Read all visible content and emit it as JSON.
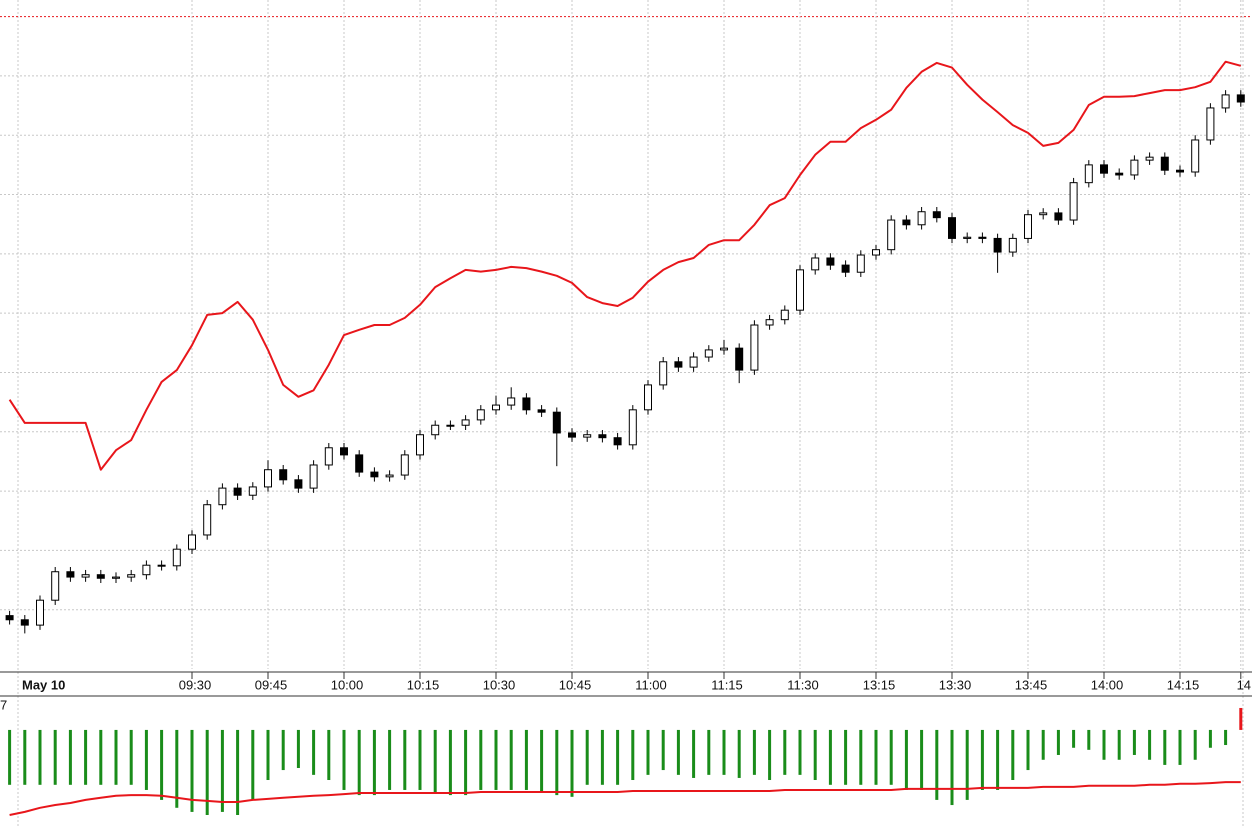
{
  "chart_data": [
    {
      "type": "candlestick",
      "date_label": "May 10",
      "categories": [
        null,
        null,
        null,
        null,
        null,
        null,
        null,
        null,
        null,
        null,
        null,
        null,
        "09:30",
        null,
        null,
        null,
        null,
        "09:45",
        null,
        null,
        null,
        null,
        "10:00",
        null,
        null,
        null,
        null,
        "10:15",
        null,
        null,
        null,
        null,
        "10:30",
        null,
        null,
        null,
        null,
        "10:45",
        null,
        null,
        null,
        null,
        "11:00",
        null,
        null,
        null,
        null,
        "11:15",
        null,
        null,
        null,
        null,
        "11:30",
        null,
        null,
        null,
        null,
        "13:15",
        null,
        null,
        null,
        null,
        "13:30",
        null,
        null,
        null,
        null,
        "13:45",
        null,
        null,
        null,
        null,
        "14:00",
        null,
        null,
        null,
        null,
        "14:15",
        null,
        null,
        null,
        "14"
      ],
      "open": [
        9.0,
        8.3,
        7.4,
        11.6,
        16.4,
        15.5,
        15.9,
        15.3,
        15.5,
        15.9,
        17.5,
        17.4,
        20.2,
        22.6,
        27.7,
        30.5,
        29.3,
        30.7,
        33.6,
        31.9,
        30.5,
        34.4,
        37.3,
        36.1,
        33.2,
        32.4,
        32.7,
        36.1,
        39.5,
        41.1,
        41.1,
        42.0,
        43.7,
        44.5,
        45.7,
        43.7,
        43.3,
        39.8,
        39.1,
        39.5,
        39.0,
        37.8,
        43.7,
        47.9,
        51.8,
        50.9,
        52.6,
        53.8,
        54.1,
        50.4,
        58.0,
        58.9,
        60.5,
        67.3,
        69.3,
        68.1,
        66.9,
        69.8,
        70.7,
        75.7,
        74.9,
        77.1,
        76.1,
        72.6,
        72.8,
        72.6,
        70.3,
        72.6,
        76.6,
        76.9,
        75.7,
        82.0,
        85.0,
        83.6,
        83.3,
        85.8,
        86.3,
        84.1,
        83.8,
        89.2,
        94.6,
        96.8
      ],
      "high": [
        9.8,
        9.1,
        12.4,
        17.2,
        17.2,
        16.7,
        16.7,
        16.3,
        16.7,
        18.3,
        18.3,
        21.0,
        23.4,
        28.5,
        31.3,
        31.3,
        31.5,
        35.2,
        34.4,
        32.7,
        35.2,
        38.1,
        38.1,
        36.9,
        34.0,
        33.5,
        36.9,
        40.3,
        41.9,
        41.9,
        42.8,
        44.5,
        46.1,
        47.5,
        46.5,
        44.5,
        44.1,
        40.6,
        40.3,
        40.3,
        39.8,
        44.5,
        48.7,
        52.6,
        52.6,
        53.4,
        54.6,
        55.5,
        54.9,
        58.8,
        59.7,
        61.3,
        68.1,
        70.1,
        70.1,
        68.9,
        70.6,
        71.5,
        76.5,
        76.5,
        77.9,
        77.9,
        76.9,
        73.6,
        73.6,
        73.4,
        73.4,
        77.4,
        77.7,
        77.7,
        82.8,
        85.8,
        85.8,
        84.4,
        86.6,
        87.1,
        87.1,
        84.9,
        90.0,
        95.4,
        97.6,
        97.6
      ],
      "low": [
        7.5,
        6.0,
        6.6,
        10.8,
        14.7,
        14.7,
        14.5,
        14.5,
        14.7,
        15.1,
        16.6,
        16.6,
        19.4,
        21.8,
        26.9,
        28.5,
        28.5,
        29.9,
        31.1,
        29.7,
        29.7,
        33.6,
        35.3,
        32.4,
        31.6,
        31.6,
        31.9,
        35.3,
        38.7,
        40.3,
        40.3,
        41.2,
        42.9,
        43.7,
        42.9,
        42.5,
        34.2,
        38.3,
        38.3,
        38.2,
        37.0,
        37.0,
        42.9,
        47.1,
        50.1,
        50.1,
        51.8,
        53.0,
        48.2,
        49.6,
        57.2,
        58.1,
        59.7,
        66.5,
        67.3,
        66.1,
        66.1,
        69.0,
        69.9,
        74.1,
        74.1,
        75.3,
        71.8,
        71.8,
        71.8,
        66.8,
        69.5,
        71.8,
        75.8,
        74.9,
        74.9,
        81.2,
        82.8,
        82.5,
        82.5,
        85.0,
        83.3,
        83.0,
        83.0,
        88.4,
        93.8,
        94.8
      ],
      "close": [
        8.3,
        7.4,
        11.6,
        16.4,
        15.5,
        15.9,
        15.3,
        15.5,
        15.9,
        17.5,
        17.4,
        20.2,
        22.6,
        27.7,
        30.5,
        29.3,
        30.7,
        33.6,
        31.9,
        30.5,
        34.4,
        37.3,
        36.1,
        33.2,
        32.4,
        32.7,
        36.1,
        39.5,
        41.1,
        41.1,
        42.0,
        43.7,
        44.5,
        45.7,
        43.7,
        43.3,
        39.8,
        39.1,
        39.5,
        39.0,
        37.8,
        43.7,
        47.9,
        51.8,
        50.9,
        52.6,
        53.8,
        54.1,
        50.4,
        58.0,
        58.9,
        60.5,
        67.3,
        69.3,
        68.1,
        66.9,
        69.8,
        70.7,
        75.7,
        74.9,
        77.1,
        76.1,
        72.6,
        72.8,
        72.6,
        70.3,
        72.6,
        76.6,
        76.9,
        75.7,
        82.0,
        85.0,
        83.6,
        83.3,
        85.8,
        86.3,
        84.1,
        83.8,
        89.2,
        94.6,
        96.8,
        95.6
      ],
      "up_color": "#ffffff",
      "down_color": "#000000",
      "outline_color": "#000000",
      "overlay": {
        "color": "#e8161b",
        "values": [
          45.4,
          41.5,
          41.5,
          41.5,
          41.5,
          41.5,
          33.6,
          36.9,
          38.6,
          43.7,
          48.4,
          50.4,
          54.6,
          59.7,
          60.0,
          61.9,
          58.9,
          53.8,
          47.9,
          45.9,
          47.0,
          51.3,
          56.3,
          57.2,
          58.0,
          58.0,
          59.2,
          61.4,
          64.4,
          65.9,
          67.3,
          67.0,
          67.3,
          67.8,
          67.6,
          67.0,
          66.3,
          65.1,
          62.7,
          61.7,
          61.2,
          62.6,
          65.3,
          67.3,
          68.6,
          69.3,
          71.5,
          72.3,
          72.3,
          74.9,
          78.2,
          79.4,
          83.3,
          86.7,
          88.9,
          88.9,
          91.2,
          92.6,
          94.3,
          98.0,
          100.7,
          102.2,
          101.4,
          98.5,
          96.0,
          93.9,
          91.7,
          90.4,
          88.2,
          88.7,
          90.9,
          95.1,
          96.5,
          96.5,
          96.6,
          97.1,
          97.6,
          97.6,
          98.1,
          99.0,
          102.4,
          101.7
        ]
      },
      "reference_line": {
        "value": 110,
        "color": "#e8161b"
      },
      "ylim": [
        0,
        112.8
      ],
      "ygrid": [
        10,
        20,
        30,
        40,
        50,
        60,
        70,
        80,
        90,
        100
      ],
      "grid": true
    },
    {
      "type": "bar",
      "values": [
        -16.0,
        -16.0,
        -16.0,
        -16.0,
        -16.0,
        -16.0,
        -16.0,
        -16.0,
        -16.0,
        -17.5,
        -20.4,
        -22.7,
        -23.9,
        -24.8,
        -23.9,
        -24.8,
        -20.4,
        -14.6,
        -11.7,
        -11.1,
        -13.1,
        -14.6,
        -17.5,
        -19.0,
        -19.0,
        -17.5,
        -17.5,
        -17.5,
        -18.1,
        -19.0,
        -19.0,
        -17.5,
        -17.5,
        -17.5,
        -17.5,
        -18.1,
        -19.0,
        -19.5,
        -16.0,
        -16.0,
        -16.0,
        -14.6,
        -13.1,
        -11.7,
        -13.1,
        -14.0,
        -13.1,
        -13.1,
        -14.0,
        -13.1,
        -14.6,
        -13.1,
        -13.1,
        -14.6,
        -16.0,
        -16.0,
        -16.0,
        -16.0,
        -16.0,
        -17.5,
        -17.5,
        -20.4,
        -21.9,
        -20.4,
        -17.5,
        -17.5,
        -14.6,
        -11.7,
        -8.7,
        -7.3,
        -5.2,
        -5.8,
        -8.7,
        -8.7,
        -7.3,
        -8.7,
        -10.2,
        -10.2,
        -8.7,
        -5.2,
        -4.4,
        6.4
      ],
      "up_color": "#e8161b",
      "down_color": "#1a8c1a",
      "line": {
        "color": "#e8161b",
        "values": [
          -24.8,
          -23.9,
          -22.7,
          -21.9,
          -21.3,
          -20.4,
          -19.8,
          -19.2,
          -19.0,
          -19.0,
          -19.2,
          -19.8,
          -20.4,
          -20.7,
          -21.0,
          -21.0,
          -20.4,
          -20.1,
          -19.8,
          -19.5,
          -19.2,
          -19.0,
          -18.7,
          -18.4,
          -18.4,
          -18.4,
          -18.4,
          -18.4,
          -18.4,
          -18.4,
          -18.4,
          -18.1,
          -18.1,
          -18.1,
          -18.1,
          -18.1,
          -18.1,
          -18.1,
          -18.1,
          -18.1,
          -18.1,
          -17.8,
          -17.8,
          -17.8,
          -17.8,
          -17.8,
          -17.8,
          -17.8,
          -17.8,
          -17.8,
          -17.8,
          -17.5,
          -17.5,
          -17.5,
          -17.5,
          -17.5,
          -17.5,
          -17.5,
          -17.5,
          -17.2,
          -17.2,
          -17.2,
          -17.2,
          -17.2,
          -16.9,
          -16.9,
          -16.9,
          -16.9,
          -16.6,
          -16.6,
          -16.6,
          -16.3,
          -16.3,
          -16.3,
          -16.3,
          -16.0,
          -16.0,
          -15.7,
          -15.7,
          -15.5,
          -15.2,
          -15.2
        ]
      },
      "ylim": [
        -28.3,
        9.6
      ],
      "yticks": [
        7
      ]
    }
  ]
}
